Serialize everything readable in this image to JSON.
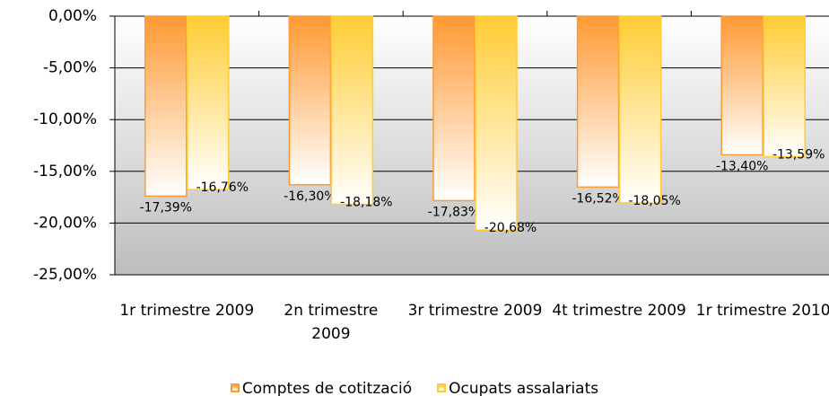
{
  "chart_data": {
    "type": "bar",
    "categories": [
      "1r trimestre 2009",
      "2n trimestre 2009",
      "3r trimestre 2009",
      "4t trimestre 2009",
      "1r trimestre 2010"
    ],
    "series": [
      {
        "name": "Comptes de cotització",
        "color": "#ff9933",
        "values": [
          -17.39,
          -16.3,
          -17.83,
          -16.52,
          -13.4
        ],
        "value_labels": [
          "-17,39%",
          "-16,30%",
          "-17,83%",
          "-16,52%",
          "-13,40%"
        ]
      },
      {
        "name": "Ocupats assalariats",
        "color": "#ffcc33",
        "values": [
          -16.76,
          -18.18,
          -20.68,
          -18.05,
          -13.59
        ],
        "value_labels": [
          "-16,76%",
          "-18,18%",
          "-20,68%",
          "-18,05%",
          "-13,59%"
        ]
      }
    ],
    "ylim": [
      -25,
      0
    ],
    "yticks": [
      {
        "value": 0,
        "label": "0,00%"
      },
      {
        "value": -5,
        "label": "-5,00%"
      },
      {
        "value": -10,
        "label": "-10,00%"
      },
      {
        "value": -15,
        "label": "-15,00%"
      },
      {
        "value": -20,
        "label": "-20,00%"
      },
      {
        "value": -25,
        "label": "-25,00%"
      }
    ],
    "grid": true,
    "legend": "bottom"
  }
}
